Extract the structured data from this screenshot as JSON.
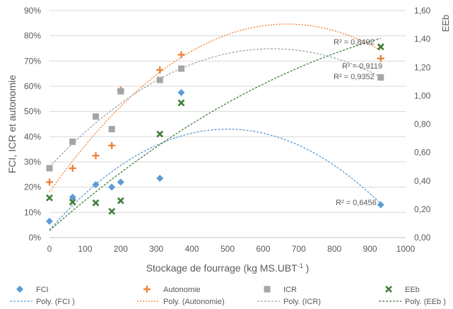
{
  "chart_data": {
    "type": "scatter",
    "xlabel": "Stockage de fourrage (kg MS.UBT",
    "xlabel_sup": "-1",
    "xlabel_end": " )",
    "ylabel_left": "FCI, ICR et autonomie",
    "ylabel_right": "EEb",
    "x_range": [
      0,
      1000
    ],
    "x_ticks": [
      "0",
      "100",
      "200",
      "300",
      "400",
      "500",
      "600",
      "700",
      "800",
      "900",
      "1000"
    ],
    "y_left_range": [
      0,
      0.9
    ],
    "y_left_ticks": [
      "0%",
      "10%",
      "20%",
      "30%",
      "40%",
      "50%",
      "60%",
      "70%",
      "80%",
      "90%"
    ],
    "y_right_range": [
      0,
      1.6
    ],
    "y_right_ticks": [
      "0,00",
      "0,20",
      "0,40",
      "0,60",
      "0,80",
      "1,00",
      "1,20",
      "1,40",
      "1,60"
    ],
    "grid": true,
    "legend_position": "bottom",
    "series": [
      {
        "name": "FCI",
        "axis": "left",
        "marker": "diamond",
        "color": "#5B9BD5",
        "x": [
          0,
          65,
          130,
          175,
          200,
          310,
          370,
          930
        ],
        "y": [
          0.065,
          0.16,
          0.21,
          0.2,
          0.22,
          0.235,
          0.575,
          0.13
        ],
        "trend_name": "Poly. (FCI )",
        "trend": [
          0.03,
          0.0016,
          -1.6e-06
        ],
        "r2": "R² = 0,6456"
      },
      {
        "name": "Autonomie",
        "axis": "left",
        "marker": "plus",
        "color": "#ED7D31",
        "x": [
          0,
          65,
          130,
          175,
          200,
          310,
          370,
          930
        ],
        "y": [
          0.22,
          0.275,
          0.325,
          0.365,
          0.585,
          0.665,
          0.725,
          0.71
        ],
        "trend_name": "Poly. (Autonomie)",
        "trend": [
          0.18,
          0.002,
          -1.5e-06
        ],
        "r2": "R² = 0,8492"
      },
      {
        "name": "ICR",
        "axis": "left",
        "marker": "square",
        "color": "#A5A5A5",
        "x": [
          0,
          65,
          130,
          175,
          200,
          310,
          370,
          930
        ],
        "y": [
          0.275,
          0.38,
          0.48,
          0.43,
          0.58,
          0.625,
          0.67,
          0.635
        ],
        "trend_name": "Poly. (ICR)",
        "trend": [
          0.28,
          0.0015,
          -1.2e-06
        ],
        "r2": "R² = 0,9352"
      },
      {
        "name": "EEb",
        "axis": "right",
        "marker": "x",
        "color": "#3E7E39",
        "x": [
          0,
          65,
          130,
          175,
          200,
          310,
          370,
          930
        ],
        "y": [
          0.28,
          0.25,
          0.245,
          0.185,
          0.26,
          0.73,
          0.95,
          1.345
        ],
        "trend_name": "Poly. (EEb )",
        "trend": [
          0.05,
          0.0022,
          -8e-07
        ],
        "r2": "R² = 0,9119"
      }
    ]
  }
}
